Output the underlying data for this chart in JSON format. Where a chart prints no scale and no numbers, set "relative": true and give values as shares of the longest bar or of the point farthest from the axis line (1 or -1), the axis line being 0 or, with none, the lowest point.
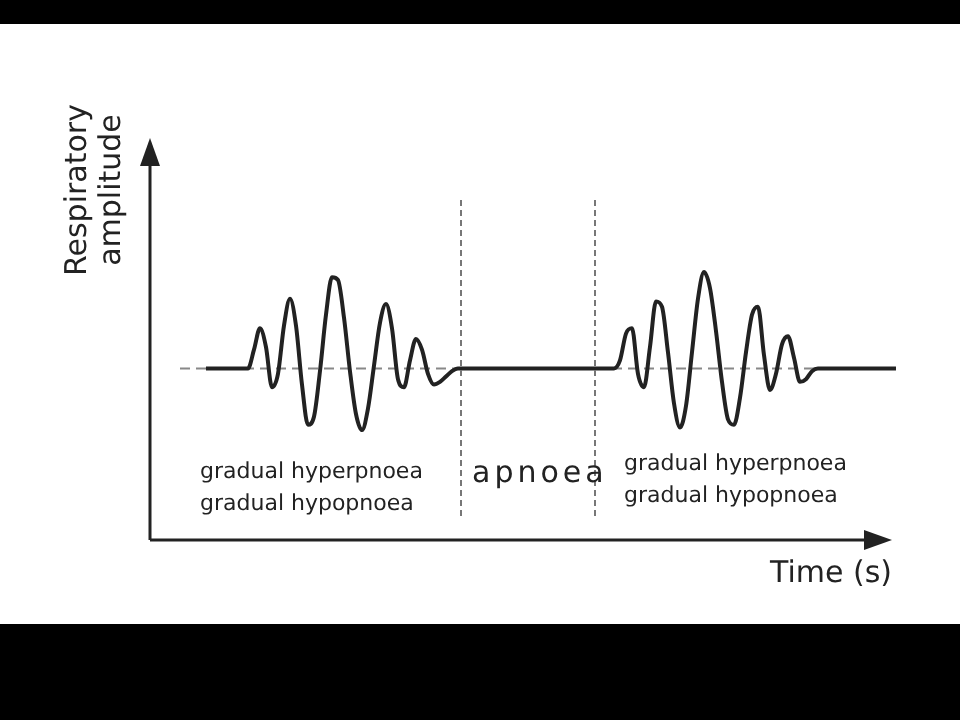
{
  "chart_data": {
    "type": "line",
    "relative": true,
    "xlabel": "Time (s)",
    "ylabel": "Respiratory amplitude",
    "color": "#222222",
    "marker": "none",
    "legend": false,
    "categories": [
      null,
      null,
      null,
      null,
      null,
      null,
      null,
      null,
      null,
      null,
      null,
      null,
      null,
      null,
      null,
      null,
      null,
      null,
      null,
      null,
      null,
      null,
      null,
      null,
      null,
      null,
      null,
      null,
      null,
      null,
      null,
      null,
      null,
      null,
      null,
      null,
      null,
      null,
      null,
      null,
      null,
      null,
      null,
      null,
      null,
      null,
      null,
      null,
      null,
      null,
      null,
      null,
      null,
      null,
      null,
      null,
      null,
      null,
      null,
      null,
      null,
      null,
      null,
      null,
      null,
      null,
      null,
      null,
      null,
      null,
      null,
      null,
      null,
      null,
      null,
      null,
      null,
      null,
      null,
      null,
      null,
      null,
      null,
      null,
      null,
      null,
      null,
      null,
      null,
      null,
      null,
      null,
      null,
      null,
      null,
      null,
      null,
      null,
      null,
      null,
      null,
      null,
      null,
      null,
      null,
      null,
      null,
      null,
      null,
      null,
      null,
      null,
      null,
      null,
      null,
      null
    ],
    "values": [
      0.64,
      0.64,
      0.64,
      0.64,
      0.64,
      0.64,
      0.64,
      0.64,
      0.71,
      0.79,
      0.72,
      0.57,
      0.62,
      0.8,
      0.9,
      0.8,
      0.58,
      0.43,
      0.46,
      0.63,
      0.84,
      0.98,
      0.97,
      0.83,
      0.63,
      0.47,
      0.41,
      0.49,
      0.65,
      0.81,
      0.88,
      0.79,
      0.6,
      0.57,
      0.67,
      0.75,
      0.71,
      0.62,
      0.58,
      0.59,
      0.61,
      0.63,
      0.64,
      0.64,
      0.64,
      0.64,
      0.64,
      0.64,
      0.64,
      0.64,
      0.64,
      0.64,
      0.64,
      0.64,
      0.64,
      0.64,
      0.64,
      0.64,
      0.64,
      0.64,
      0.64,
      0.64,
      0.64,
      0.64,
      0.64,
      0.64,
      0.64,
      0.64,
      0.64,
      0.67,
      0.77,
      0.79,
      0.62,
      0.57,
      0.72,
      0.89,
      0.87,
      0.7,
      0.51,
      0.42,
      0.5,
      0.7,
      0.9,
      1.0,
      0.94,
      0.78,
      0.59,
      0.45,
      0.43,
      0.53,
      0.7,
      0.84,
      0.87,
      0.69,
      0.56,
      0.62,
      0.73,
      0.76,
      0.68,
      0.59,
      0.6,
      0.63,
      0.64,
      0.64,
      0.64,
      0.64,
      0.64,
      0.64,
      0.64,
      0.64,
      0.64,
      0.64,
      0.64,
      0.64,
      0.64,
      0.64
    ],
    "ref_lines": [
      {
        "axis": "y",
        "value": 0.64,
        "color": "#888888",
        "line_style": "dashed"
      }
    ],
    "annotations": [
      "gradual hyperpnoea",
      "gradual hypopnoea",
      "apnoea",
      "gradual hyperpnoea",
      "gradual hypopnoea"
    ]
  }
}
